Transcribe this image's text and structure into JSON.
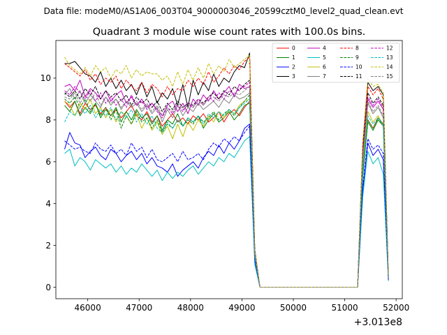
{
  "suptitle": "Data file: modeM0/AS1A06_003T04_9000003046_20599cztM0_level2_quad_clean.evt",
  "chart_data": {
    "type": "line",
    "title": "Quadrant 3 module wise count rates with 100.0s bins.",
    "xlabel": "",
    "ylabel": "",
    "x_offset_label": "+3.013e8",
    "xlim": [
      45380,
      52120
    ],
    "ylim": [
      -0.55,
      11.8
    ],
    "x_ticks": [
      46000,
      47000,
      48000,
      49000,
      50000,
      51000,
      52000
    ],
    "y_ticks": [
      0,
      2,
      4,
      6,
      8,
      10
    ],
    "grid": false,
    "legend_position": "top-right",
    "x": [
      45550,
      45650,
      45750,
      45850,
      45950,
      46050,
      46150,
      46250,
      46350,
      46450,
      46550,
      46650,
      46750,
      46850,
      46950,
      47050,
      47150,
      47250,
      47350,
      47450,
      47550,
      47650,
      47750,
      47850,
      47950,
      48050,
      48150,
      48250,
      48350,
      48450,
      48550,
      48650,
      48750,
      48850,
      48950,
      49050,
      49150,
      49250,
      49350,
      49450,
      49550,
      49650,
      49750,
      49850,
      49950,
      50050,
      50150,
      50250,
      50350,
      50450,
      50550,
      50650,
      50750,
      50850,
      50950,
      51050,
      51150,
      51250,
      51350,
      51450,
      51550,
      51650,
      51750,
      51850
    ],
    "series": [
      {
        "name": "0",
        "color": "#ff0000",
        "dash": "solid",
        "values": [
          8.9,
          8.6,
          8.9,
          8.3,
          8.8,
          8.5,
          8.7,
          8.3,
          8.6,
          8.2,
          8.5,
          8.1,
          8.4,
          8.7,
          8.2,
          8.0,
          8.4,
          7.9,
          8.2,
          7.7,
          8.0,
          8.3,
          7.9,
          8.1,
          7.8,
          8.2,
          8.0,
          8.3,
          7.9,
          8.1,
          8.4,
          7.9,
          8.3,
          8.5,
          8.2,
          8.6,
          8.9,
          1.6,
          0.0,
          0.0,
          0.0,
          0.0,
          0.0,
          0.0,
          0.0,
          0.0,
          0.0,
          0.0,
          0.0,
          0.0,
          0.0,
          0.0,
          0.0,
          0.0,
          0.0,
          0.0,
          0.0,
          0.0,
          5.5,
          8.0,
          7.6,
          8.1,
          7.8,
          0.4
        ]
      },
      {
        "name": "1",
        "color": "#008000",
        "dash": "solid",
        "values": [
          8.7,
          8.4,
          8.9,
          8.2,
          8.6,
          8.3,
          8.8,
          8.1,
          8.5,
          8.2,
          8.6,
          7.9,
          8.4,
          8.0,
          8.5,
          8.1,
          8.3,
          7.8,
          8.2,
          7.5,
          8.0,
          7.8,
          8.3,
          7.7,
          8.1,
          7.9,
          8.2,
          7.6,
          8.0,
          8.3,
          7.9,
          8.1,
          8.4,
          8.0,
          8.3,
          8.7,
          8.8,
          1.5,
          0.0,
          0.0,
          0.0,
          0.0,
          0.0,
          0.0,
          0.0,
          0.0,
          0.0,
          0.0,
          0.0,
          0.0,
          0.0,
          0.0,
          0.0,
          0.0,
          0.0,
          0.0,
          0.0,
          0.0,
          5.3,
          7.9,
          7.5,
          8.0,
          7.7,
          0.4
        ]
      },
      {
        "name": "2",
        "color": "#0000ff",
        "dash": "solid",
        "values": [
          6.6,
          7.4,
          6.9,
          6.8,
          6.2,
          6.5,
          6.7,
          6.3,
          6.1,
          6.6,
          6.4,
          6.0,
          6.3,
          6.5,
          6.1,
          6.4,
          5.9,
          6.2,
          5.8,
          5.7,
          5.5,
          5.9,
          5.3,
          5.6,
          5.8,
          6.0,
          5.7,
          6.2,
          6.5,
          6.3,
          6.8,
          6.4,
          6.9,
          6.6,
          7.0,
          7.6,
          7.8,
          1.2,
          0.0,
          0.0,
          0.0,
          0.0,
          0.0,
          0.0,
          0.0,
          0.0,
          0.0,
          0.0,
          0.0,
          0.0,
          0.0,
          0.0,
          0.0,
          0.0,
          0.0,
          0.0,
          0.0,
          0.0,
          4.6,
          6.9,
          6.3,
          6.6,
          6.1,
          0.3
        ]
      },
      {
        "name": "3",
        "color": "#000000",
        "dash": "solid",
        "values": [
          10.7,
          10.7,
          10.8,
          10.5,
          10.2,
          10.1,
          9.8,
          10.3,
          9.6,
          10.0,
          9.5,
          9.9,
          9.4,
          9.7,
          9.2,
          9.8,
          9.1,
          9.6,
          8.8,
          9.3,
          9.0,
          9.5,
          8.7,
          9.7,
          8.6,
          9.9,
          9.2,
          9.8,
          9.4,
          10.2,
          9.6,
          10.0,
          9.8,
          10.3,
          10.6,
          10.5,
          11.2,
          1.8,
          0.0,
          0.0,
          0.0,
          0.0,
          0.0,
          0.0,
          0.0,
          0.0,
          0.0,
          0.0,
          0.0,
          0.0,
          0.0,
          0.0,
          0.0,
          0.0,
          0.0,
          0.0,
          0.0,
          0.0,
          6.8,
          9.8,
          9.4,
          9.6,
          9.2,
          0.5
        ]
      },
      {
        "name": "4",
        "color": "#bf00bf",
        "dash": "solid",
        "values": [
          9.6,
          9.7,
          9.4,
          9.9,
          9.1,
          9.5,
          9.3,
          9.0,
          9.4,
          8.9,
          9.2,
          9.4,
          8.8,
          9.1,
          8.7,
          9.0,
          8.6,
          8.8,
          8.5,
          8.2,
          8.7,
          8.9,
          8.4,
          8.8,
          8.3,
          9.0,
          8.7,
          9.2,
          8.9,
          9.4,
          9.0,
          9.3,
          9.6,
          9.1,
          9.7,
          9.5,
          9.6,
          1.7,
          0.0,
          0.0,
          0.0,
          0.0,
          0.0,
          0.0,
          0.0,
          0.0,
          0.0,
          0.0,
          0.0,
          0.0,
          0.0,
          0.0,
          0.0,
          0.0,
          0.0,
          0.0,
          0.0,
          0.0,
          6.2,
          9.0,
          8.6,
          8.9,
          8.5,
          0.4
        ]
      },
      {
        "name": "5",
        "color": "#00bfbf",
        "dash": "solid",
        "values": [
          6.4,
          6.6,
          5.8,
          6.2,
          6.0,
          5.6,
          6.1,
          5.9,
          5.7,
          5.9,
          5.5,
          5.8,
          5.4,
          5.7,
          5.5,
          5.9,
          5.6,
          5.3,
          5.6,
          5.1,
          5.5,
          5.2,
          5.5,
          5.3,
          5.6,
          5.8,
          5.4,
          5.7,
          6.0,
          5.8,
          6.2,
          6.0,
          6.4,
          6.2,
          6.6,
          7.0,
          7.2,
          1.1,
          0.0,
          0.0,
          0.0,
          0.0,
          0.0,
          0.0,
          0.0,
          0.0,
          0.0,
          0.0,
          0.0,
          0.0,
          0.0,
          0.0,
          0.0,
          0.0,
          0.0,
          0.0,
          0.0,
          0.0,
          4.3,
          6.5,
          5.9,
          6.2,
          5.4,
          0.3
        ]
      },
      {
        "name": "6",
        "color": "#bfbf00",
        "dash": "solid",
        "values": [
          8.9,
          8.7,
          8.2,
          8.8,
          8.5,
          9.0,
          8.3,
          8.6,
          8.1,
          8.5,
          7.9,
          8.4,
          8.2,
          7.8,
          8.3,
          7.6,
          8.1,
          7.5,
          7.9,
          7.3,
          7.7,
          7.1,
          7.8,
          7.2,
          7.9,
          7.5,
          8.0,
          7.7,
          8.2,
          7.9,
          8.4,
          8.1,
          8.5,
          8.3,
          8.7,
          8.9,
          9.0,
          1.6,
          0.0,
          0.0,
          0.0,
          0.0,
          0.0,
          0.0,
          0.0,
          0.0,
          0.0,
          0.0,
          0.0,
          0.0,
          0.0,
          0.0,
          0.0,
          0.0,
          0.0,
          0.0,
          0.0,
          0.0,
          5.8,
          8.4,
          7.9,
          8.2,
          7.7,
          0.4
        ]
      },
      {
        "name": "7",
        "color": "#808080",
        "dash": "solid",
        "values": [
          9.2,
          9.5,
          9.0,
          9.4,
          8.8,
          9.2,
          8.9,
          8.6,
          9.1,
          8.7,
          9.0,
          8.5,
          8.9,
          8.6,
          8.8,
          8.4,
          8.7,
          8.3,
          8.6,
          7.9,
          8.5,
          8.1,
          8.7,
          8.2,
          8.6,
          8.4,
          8.8,
          8.5,
          8.7,
          8.9,
          8.6,
          9.0,
          8.8,
          9.2,
          9.0,
          9.1,
          9.3,
          1.6,
          0.0,
          0.0,
          0.0,
          0.0,
          0.0,
          0.0,
          0.0,
          0.0,
          0.0,
          0.0,
          0.0,
          0.0,
          0.0,
          0.0,
          0.0,
          0.0,
          0.0,
          0.0,
          0.0,
          0.0,
          6.0,
          8.8,
          8.3,
          8.6,
          8.1,
          0.4
        ]
      },
      {
        "name": "8",
        "color": "#ff0000",
        "dash": "dashed",
        "values": [
          10.7,
          10.5,
          10.3,
          10.1,
          10.4,
          9.9,
          10.2,
          9.7,
          10.0,
          9.8,
          10.1,
          9.5,
          9.9,
          9.6,
          9.4,
          9.8,
          9.3,
          9.7,
          9.5,
          9.1,
          9.6,
          9.2,
          9.5,
          9.4,
          9.9,
          9.6,
          10.0,
          9.7,
          10.3,
          9.8,
          10.1,
          10.5,
          10.2,
          10.6,
          10.4,
          10.8,
          11.0,
          1.8,
          0.0,
          0.0,
          0.0,
          0.0,
          0.0,
          0.0,
          0.0,
          0.0,
          0.0,
          0.0,
          0.0,
          0.0,
          0.0,
          0.0,
          0.0,
          0.0,
          0.0,
          0.0,
          0.0,
          0.0,
          6.6,
          9.6,
          9.2,
          9.5,
          9.0,
          0.5
        ]
      },
      {
        "name": "9",
        "color": "#008000",
        "dash": "dashed",
        "values": [
          9.0,
          8.8,
          9.1,
          8.6,
          9.0,
          8.4,
          8.8,
          8.2,
          8.6,
          8.0,
          8.5,
          7.6,
          8.2,
          7.8,
          8.4,
          7.9,
          8.1,
          7.6,
          8.0,
          7.4,
          7.8,
          7.6,
          8.0,
          7.7,
          8.0,
          7.8,
          8.2,
          7.9,
          8.1,
          8.4,
          8.0,
          8.3,
          8.5,
          8.2,
          8.6,
          8.9,
          9.2,
          1.5,
          0.0,
          0.0,
          0.0,
          0.0,
          0.0,
          0.0,
          0.0,
          0.0,
          0.0,
          0.0,
          0.0,
          0.0,
          0.0,
          0.0,
          0.0,
          0.0,
          0.0,
          0.0,
          0.0,
          0.0,
          5.4,
          8.0,
          7.6,
          8.1,
          7.8,
          0.4
        ]
      },
      {
        "name": "10",
        "color": "#0000ff",
        "dash": "dashed",
        "values": [
          7.0,
          6.8,
          6.6,
          6.7,
          6.5,
          6.4,
          6.9,
          6.6,
          6.5,
          6.8,
          6.4,
          6.6,
          6.3,
          6.9,
          6.5,
          6.7,
          6.2,
          6.6,
          6.1,
          6.0,
          6.2,
          6.4,
          6.0,
          6.5,
          6.1,
          6.2,
          6.4,
          6.1,
          6.6,
          6.9,
          6.7,
          7.1,
          6.9,
          7.2,
          7.0,
          7.4,
          7.7,
          1.3,
          0.0,
          0.0,
          0.0,
          0.0,
          0.0,
          0.0,
          0.0,
          0.0,
          0.0,
          0.0,
          0.0,
          0.0,
          0.0,
          0.0,
          0.0,
          0.0,
          0.0,
          0.0,
          0.0,
          0.0,
          4.8,
          7.1,
          6.6,
          6.8,
          6.4,
          0.3
        ]
      },
      {
        "name": "11",
        "color": "#000000",
        "dash": "dashed",
        "values": [
          9.3,
          9.1,
          9.4,
          9.0,
          9.5,
          9.2,
          9.6,
          9.0,
          9.4,
          9.1,
          9.3,
          8.9,
          9.2,
          8.7,
          9.1,
          8.8,
          9.0,
          8.6,
          8.9,
          8.4,
          8.8,
          8.5,
          8.9,
          8.6,
          8.8,
          8.7,
          9.0,
          8.8,
          9.1,
          9.3,
          9.0,
          9.4,
          9.2,
          9.6,
          9.4,
          9.7,
          9.9,
          1.7,
          0.0,
          0.0,
          0.0,
          0.0,
          0.0,
          0.0,
          0.0,
          0.0,
          0.0,
          0.0,
          0.0,
          0.0,
          0.0,
          0.0,
          0.0,
          0.0,
          0.0,
          0.0,
          0.0,
          0.0,
          6.4,
          9.3,
          8.8,
          9.1,
          8.7,
          0.5
        ]
      },
      {
        "name": "12",
        "color": "#bf00bf",
        "dash": "dashed",
        "values": [
          9.4,
          9.2,
          9.6,
          9.3,
          9.0,
          9.4,
          8.9,
          9.3,
          8.8,
          9.1,
          8.7,
          9.0,
          8.6,
          9.2,
          8.7,
          8.9,
          8.5,
          8.8,
          8.4,
          8.1,
          8.6,
          8.3,
          8.7,
          8.4,
          8.8,
          8.6,
          9.0,
          8.7,
          9.1,
          8.9,
          9.3,
          9.0,
          9.4,
          9.2,
          9.5,
          9.6,
          9.8,
          1.7,
          0.0,
          0.0,
          0.0,
          0.0,
          0.0,
          0.0,
          0.0,
          0.0,
          0.0,
          0.0,
          0.0,
          0.0,
          0.0,
          0.0,
          0.0,
          0.0,
          0.0,
          0.0,
          0.0,
          0.0,
          6.3,
          9.1,
          8.7,
          9.0,
          8.6,
          0.4
        ]
      },
      {
        "name": "13",
        "color": "#00bfbf",
        "dash": "dashed",
        "values": [
          7.9,
          8.4,
          8.2,
          8.6,
          8.3,
          8.7,
          8.1,
          8.5,
          8.2,
          8.6,
          8.0,
          8.4,
          8.1,
          8.5,
          7.9,
          8.3,
          7.8,
          8.2,
          7.6,
          7.4,
          7.9,
          7.6,
          8.0,
          7.7,
          8.1,
          7.9,
          8.2,
          7.8,
          8.3,
          8.1,
          8.4,
          8.2,
          8.5,
          8.3,
          8.6,
          8.8,
          9.0,
          1.5,
          0.0,
          0.0,
          0.0,
          0.0,
          0.0,
          0.0,
          0.0,
          0.0,
          0.0,
          0.0,
          0.0,
          0.0,
          0.0,
          0.0,
          0.0,
          0.0,
          0.0,
          0.0,
          0.0,
          0.0,
          5.6,
          8.2,
          7.8,
          8.1,
          7.7,
          0.4
        ]
      },
      {
        "name": "14",
        "color": "#bfbf00",
        "dash": "dashed",
        "values": [
          11.0,
          10.6,
          10.4,
          10.2,
          10.5,
          10.1,
          10.6,
          10.3,
          10.5,
          10.0,
          10.4,
          10.2,
          10.6,
          10.0,
          10.4,
          10.1,
          10.3,
          10.2,
          10.2,
          9.9,
          10.1,
          9.6,
          10.3,
          9.7,
          10.4,
          9.9,
          10.5,
          10.0,
          10.7,
          10.2,
          10.6,
          10.3,
          10.9,
          10.5,
          10.7,
          10.9,
          11.1,
          1.8,
          0.0,
          0.0,
          0.0,
          0.0,
          0.0,
          0.0,
          0.0,
          0.0,
          0.0,
          0.0,
          0.0,
          0.0,
          0.0,
          0.0,
          0.0,
          0.0,
          0.0,
          0.0,
          0.0,
          0.0,
          6.9,
          10.0,
          9.6,
          9.7,
          9.3,
          0.5
        ]
      },
      {
        "name": "15",
        "color": "#808080",
        "dash": "dashed",
        "values": [
          9.1,
          9.0,
          9.3,
          8.8,
          9.2,
          8.9,
          9.3,
          8.7,
          9.1,
          8.8,
          9.0,
          8.6,
          8.9,
          8.7,
          8.9,
          8.5,
          8.8,
          8.4,
          8.7,
          8.2,
          8.6,
          8.4,
          8.8,
          8.5,
          8.7,
          8.6,
          8.9,
          8.7,
          9.0,
          9.1,
          8.9,
          9.2,
          9.1,
          9.3,
          9.2,
          9.4,
          9.6,
          1.6,
          0.0,
          0.0,
          0.0,
          0.0,
          0.0,
          0.0,
          0.0,
          0.0,
          0.0,
          0.0,
          0.0,
          0.0,
          0.0,
          0.0,
          0.0,
          0.0,
          0.0,
          0.0,
          0.0,
          0.0,
          6.1,
          8.9,
          8.4,
          8.7,
          8.2,
          0.4
        ]
      }
    ]
  }
}
